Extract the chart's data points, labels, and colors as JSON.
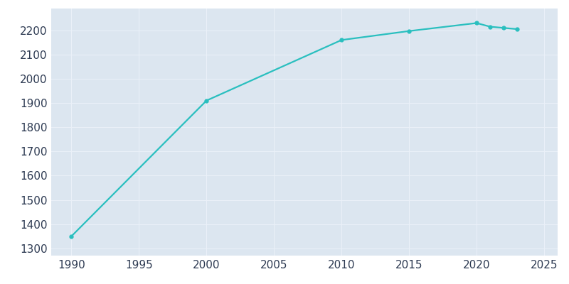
{
  "years": [
    1990,
    2000,
    2010,
    2015,
    2020,
    2021,
    2022,
    2023
  ],
  "population": [
    1350,
    1910,
    2160,
    2197,
    2230,
    2215,
    2210,
    2205
  ],
  "line_color": "#2abfbf",
  "marker": "o",
  "marker_size": 3.5,
  "line_width": 1.6,
  "plot_bg_color": "#dce6f0",
  "fig_bg_color": "#ffffff",
  "grid_color": "#eaf0f8",
  "tick_label_color": "#2d3a52",
  "xlim": [
    1988.5,
    2026
  ],
  "ylim": [
    1270,
    2290
  ],
  "xticks": [
    1990,
    1995,
    2000,
    2005,
    2010,
    2015,
    2020,
    2025
  ],
  "yticks": [
    1300,
    1400,
    1500,
    1600,
    1700,
    1800,
    1900,
    2000,
    2100,
    2200
  ],
  "tick_fontsize": 11
}
